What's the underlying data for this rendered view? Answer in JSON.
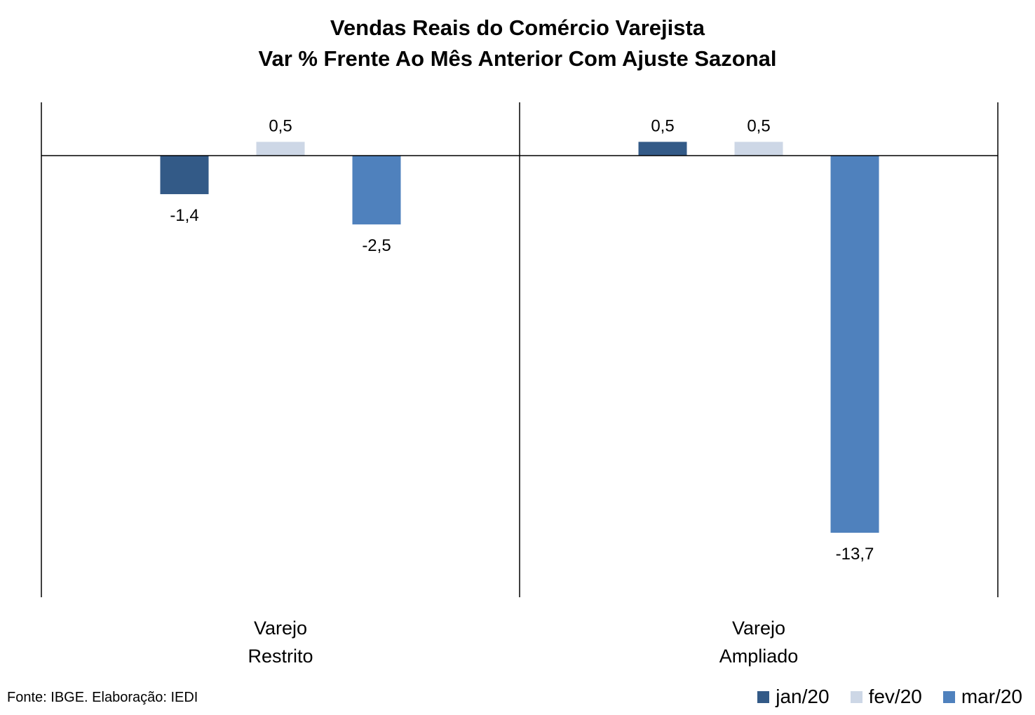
{
  "chart_data": {
    "type": "bar",
    "title": "Vendas Reais do Comércio Varejista",
    "subtitle": "Var % Frente Ao Mês Anterior Com Ajuste Sazonal",
    "categories": [
      [
        "Varejo",
        "Restrito"
      ],
      [
        "Varejo",
        "Ampliado"
      ]
    ],
    "series": [
      {
        "name": "jan/20",
        "values": [
          -1.4,
          0.5
        ],
        "labels": [
          "-1,4",
          "0,5"
        ],
        "color": "#335a87"
      },
      {
        "name": "fev/20",
        "values": [
          0.5,
          0.5
        ],
        "labels": [
          "0,5",
          "0,5"
        ],
        "color": "#cdd7e6"
      },
      {
        "name": "mar/20",
        "values": [
          -2.5,
          -13.7
        ],
        "labels": [
          "-2,5",
          "-13,7"
        ],
        "color": "#4f81bd"
      }
    ],
    "ylim": [
      -16,
      2
    ],
    "grid": false,
    "legend_position": "bottom-right",
    "source": "Fonte: IBGE. Elaboração: IEDI"
  }
}
